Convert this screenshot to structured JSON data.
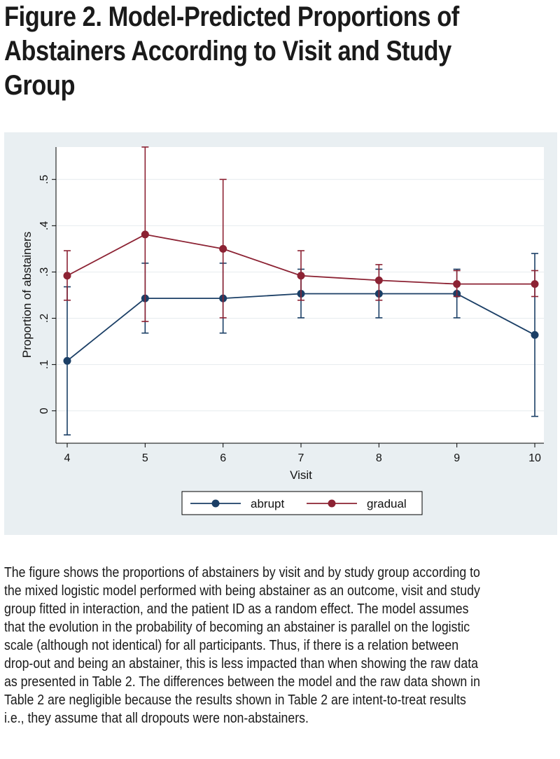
{
  "figure": {
    "title_lines": [
      "Figure 2.  Model-Predicted Proportions of",
      "Abstainers According to Visit and Study",
      "Group"
    ],
    "caption_lines": [
      "The figure shows the proportions of abstainers by visit and by study group according to",
      "the mixed logistic model performed with being abstainer as an outcome, visit and study",
      "group fitted in interaction, and the patient ID as a random effect.  The model assumes",
      "that the evolution in the probability of becoming an abstainer is parallel on the logistic",
      "scale (although not identical) for all participants. Thus, if there is a relation between",
      "drop-out and being an abstainer, this is less impacted than when showing the raw data",
      "as presented in Table 2. The differences between the model and the raw data shown in",
      "Table 2 are negligible because the results shown in Table 2 are intent-to-treat results",
      "i.e., they assume that all dropouts were non-abstainers."
    ]
  },
  "chart_data": {
    "type": "line",
    "xlabel": "Visit",
    "ylabel": "Proportion of abstainers",
    "x": [
      4,
      5,
      6,
      7,
      8,
      9,
      10
    ],
    "xlim": [
      4,
      10
    ],
    "ylim": [
      -0.07,
      0.57
    ],
    "x_ticks": [
      "4",
      "5",
      "6",
      "7",
      "8",
      "9",
      "10"
    ],
    "y_ticks": [
      {
        "value": 0,
        "label": "0"
      },
      {
        "value": 0.1,
        "label": ".1"
      },
      {
        "value": 0.2,
        "label": ".2"
      },
      {
        "value": 0.3,
        "label": ".3"
      },
      {
        "value": 0.4,
        "label": ".4"
      },
      {
        "value": 0.5,
        "label": ".5"
      }
    ],
    "grid": true,
    "legend_position": "bottom",
    "series": [
      {
        "name": "abrupt",
        "color": "#1b3f66",
        "values": [
          0.108,
          0.243,
          0.243,
          0.253,
          0.253,
          0.253,
          0.164
        ],
        "ci_low": [
          -0.052,
          0.168,
          0.168,
          0.201,
          0.201,
          0.201,
          -0.012
        ],
        "ci_high": [
          0.268,
          0.319,
          0.319,
          0.306,
          0.306,
          0.306,
          0.34
        ]
      },
      {
        "name": "gradual",
        "color": "#8c2233",
        "values": [
          0.292,
          0.381,
          0.35,
          0.292,
          0.282,
          0.274,
          0.274
        ],
        "ci_low": [
          0.239,
          0.193,
          0.201,
          0.239,
          0.239,
          0.247,
          0.247
        ],
        "ci_high": [
          0.346,
          0.57,
          0.5,
          0.346,
          0.316,
          0.303,
          0.303
        ]
      }
    ]
  }
}
